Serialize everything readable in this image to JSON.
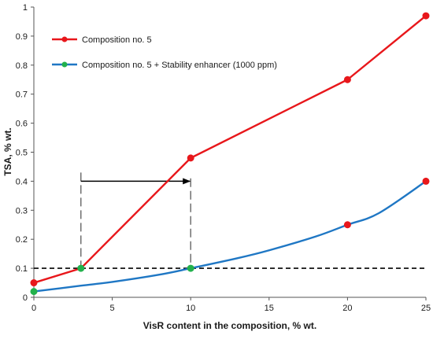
{
  "chart_data": {
    "type": "line",
    "xlabel": "VisR content in the composition, % wt.",
    "ylabel": "TSA, % wt.",
    "xlim": [
      0,
      25
    ],
    "ylim": [
      0,
      1
    ],
    "x_ticks": [
      0,
      5,
      10,
      15,
      20,
      25
    ],
    "y_ticks": [
      0,
      0.1,
      0.2,
      0.3,
      0.4,
      0.5,
      0.6,
      0.7,
      0.8,
      0.9,
      1
    ],
    "y_tick_labels": [
      "0",
      "0.1",
      "0.2",
      "0.3",
      "0.4",
      "0.5",
      "0.6",
      "0.7",
      "0.8",
      "0.9",
      "1"
    ],
    "grid": false,
    "legend_position": "top-left",
    "series": [
      {
        "name": "Composition no. 5",
        "color": "#e8171b",
        "marker_color": "#e8171b",
        "smooth": false,
        "points": [
          [
            0,
            0.05
          ],
          [
            3,
            0.1
          ],
          [
            10,
            0.48
          ],
          [
            20,
            0.75
          ],
          [
            25,
            0.97
          ]
        ],
        "marker_overrides": [
          {
            "x": 3,
            "color": "#22b14c"
          }
        ]
      },
      {
        "name": "Composition no. 5 + Stability enhancer (1000 ppm)",
        "color": "#1f77c4",
        "marker_color": "#22b14c",
        "smooth": true,
        "points": [
          [
            0,
            0.02
          ],
          [
            10,
            0.1
          ],
          [
            20,
            0.25
          ],
          [
            25,
            0.4
          ]
        ],
        "curve": [
          [
            0,
            0.02
          ],
          [
            3,
            0.04
          ],
          [
            5,
            0.053
          ],
          [
            8,
            0.078
          ],
          [
            10,
            0.1
          ],
          [
            13,
            0.135
          ],
          [
            15,
            0.162
          ],
          [
            18,
            0.21
          ],
          [
            20,
            0.25
          ],
          [
            22,
            0.29
          ],
          [
            25,
            0.4
          ]
        ],
        "marker_overrides": [
          {
            "x": 20,
            "color": "#e8171b"
          },
          {
            "x": 25,
            "color": "#e8171b"
          }
        ]
      }
    ],
    "annotations": {
      "threshold_line": {
        "y": 0.1,
        "style": "dashed",
        "color": "#000000"
      },
      "drop_lines": [
        {
          "x": 3,
          "y_top": 0.43
        },
        {
          "x": 10,
          "y_top": 0.41
        }
      ],
      "arrow": {
        "from": [
          3,
          0.4
        ],
        "to": [
          10,
          0.4
        ],
        "color": "#000000"
      }
    }
  }
}
